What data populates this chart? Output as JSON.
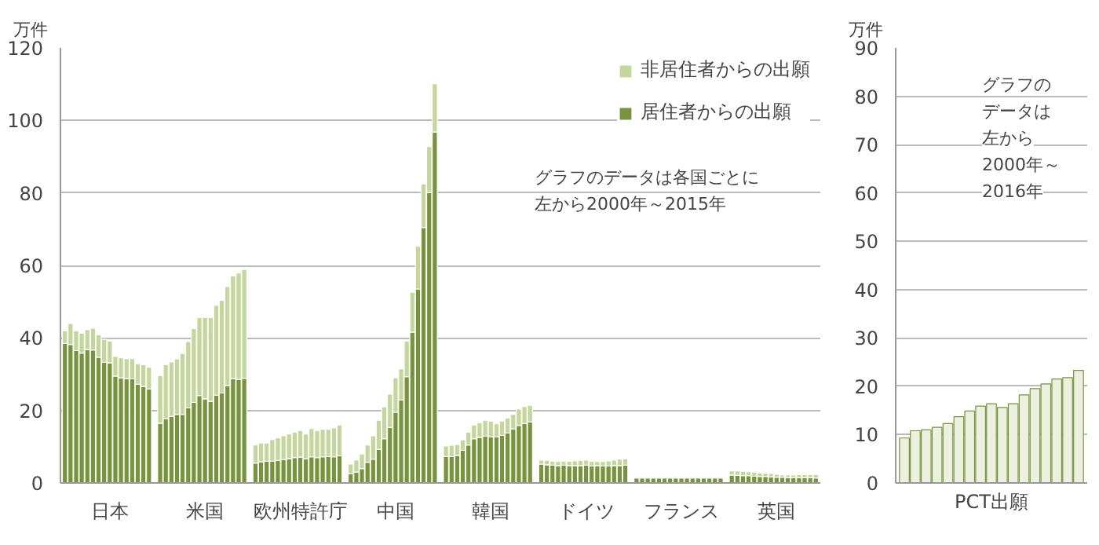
{
  "chart_data": [
    {
      "type": "bar",
      "title": "万件",
      "stacked": true,
      "legend": "top right",
      "grid": "y",
      "ylim": [
        0,
        120
      ],
      "yticks": [
        0,
        20,
        40,
        60,
        80,
        100,
        120
      ],
      "annotations": [
        "グラフのデータは各国ごとに",
        "左から2000年～2015年"
      ],
      "categories": [
        null,
        null,
        null,
        null,
        null,
        null,
        null,
        null,
        "日本",
        null,
        null,
        null,
        null,
        null,
        null,
        null,
        null,
        null,
        null,
        null,
        null,
        null,
        null,
        null,
        null,
        "米国",
        null,
        null,
        null,
        null,
        null,
        null,
        null,
        null,
        null,
        null,
        null,
        null,
        null,
        null,
        null,
        null,
        "欧州特許庁",
        null,
        null,
        null,
        null,
        null,
        null,
        null,
        null,
        null,
        null,
        null,
        null,
        null,
        null,
        null,
        null,
        "中国",
        null,
        null,
        null,
        null,
        null,
        null,
        null,
        null,
        null,
        null,
        null,
        null,
        null,
        null,
        null,
        null,
        "韓国",
        null,
        null,
        null,
        null,
        null,
        null,
        null,
        null,
        null,
        null,
        null,
        null,
        null,
        null,
        null,
        null,
        "ドイツ",
        null,
        null,
        null,
        null,
        null,
        null,
        null,
        null,
        null,
        null,
        null,
        null,
        null,
        null,
        null,
        null,
        "フランス",
        null,
        null,
        null,
        null,
        null,
        null,
        null,
        null,
        null,
        null,
        null,
        null,
        null,
        null,
        null,
        null,
        "英国",
        null,
        null,
        null,
        null,
        null,
        null,
        null
      ],
      "series": [
        {
          "name": "居住者からの出願",
          "color": "#77933c",
          "values": [
            38.5,
            38.2,
            36.5,
            35.8,
            36.8,
            36.7,
            34.7,
            33.3,
            33.1,
            29.5,
            29.0,
            28.8,
            28.7,
            27.2,
            26.6,
            25.9,
            null,
            16.5,
            17.7,
            18.4,
            18.9,
            18.9,
            20.7,
            22.2,
            24.1,
            23.2,
            22.5,
            24.2,
            24.8,
            26.9,
            28.8,
            28.5,
            28.9,
            null,
            5.5,
            5.8,
            6.0,
            6.0,
            6.2,
            6.4,
            6.7,
            7.0,
            7.1,
            6.7,
            7.2,
            7.0,
            7.2,
            7.3,
            7.2,
            7.5,
            null,
            2.5,
            3.0,
            4.0,
            5.7,
            6.6,
            9.3,
            12.2,
            15.3,
            19.5,
            22.9,
            29.3,
            41.6,
            53.5,
            70.5,
            80.1,
            96.8,
            null,
            7.3,
            7.3,
            7.6,
            9.0,
            10.5,
            12.2,
            12.6,
            12.9,
            12.7,
            12.7,
            13.1,
            13.8,
            14.9,
            15.9,
            16.4,
            16.8,
            null,
            5.2,
            5.0,
            4.9,
            4.8,
            4.9,
            4.8,
            4.8,
            4.8,
            4.9,
            4.7,
            4.8,
            4.7,
            4.7,
            4.8,
            4.8,
            4.9,
            null,
            1.4,
            1.4,
            1.4,
            1.4,
            1.4,
            1.4,
            1.4,
            1.4,
            1.4,
            1.4,
            1.4,
            1.4,
            1.4,
            1.4,
            1.4,
            1.4,
            null,
            2.2,
            2.1,
            2.0,
            2.0,
            1.9,
            1.8,
            1.8,
            1.7,
            1.6,
            1.6,
            1.5,
            1.5,
            1.5,
            1.5,
            1.5,
            1.4
          ]
        },
        {
          "name": "非居住者からの出願",
          "color": "#c3d69b",
          "values": [
            3.5,
            5.8,
            5.5,
            5.5,
            5.5,
            6.0,
            6.2,
            6.3,
            6.0,
            5.4,
            5.5,
            5.5,
            5.6,
            5.7,
            6.0,
            6.0,
            null,
            13.1,
            14.9,
            15.0,
            15.3,
            16.8,
            18.3,
            20.4,
            21.5,
            22.4,
            23.1,
            24.8,
            25.6,
            27.3,
            28.3,
            29.4,
            30.0,
            null,
            5.0,
            5.2,
            5.0,
            6.0,
            6.3,
            6.6,
            6.8,
            7.0,
            7.4,
            6.8,
            7.8,
            7.5,
            7.6,
            7.5,
            8.0,
            8.5,
            null,
            2.7,
            3.3,
            4.0,
            4.8,
            6.4,
            8.0,
            8.8,
            9.2,
            9.5,
            8.6,
            9.8,
            11.0,
            11.8,
            12.0,
            12.7,
            13.3,
            null,
            2.9,
            3.1,
            3.0,
            2.9,
            3.5,
            3.8,
            4.0,
            4.4,
            4.3,
            3.6,
            4.0,
            4.1,
            4.0,
            4.5,
            4.7,
            4.6,
            null,
            1.1,
            1.2,
            1.1,
            1.1,
            1.1,
            1.2,
            1.3,
            1.4,
            1.4,
            1.3,
            1.1,
            1.2,
            1.4,
            1.5,
            1.8,
            1.8,
            null,
            0.3,
            0.3,
            0.3,
            0.3,
            0.3,
            0.3,
            0.3,
            0.3,
            0.3,
            0.3,
            0.3,
            0.3,
            0.3,
            0.3,
            0.3,
            0.3,
            null,
            1.1,
            1.2,
            1.2,
            1.1,
            1.1,
            1.0,
            0.9,
            0.9,
            0.8,
            0.6,
            0.7,
            0.7,
            0.8,
            0.8,
            0.8,
            0.9
          ]
        }
      ]
    },
    {
      "type": "bar",
      "title": "万件",
      "xlabel": "PCT出願",
      "grid": "y",
      "ylim": [
        0,
        90
      ],
      "yticks": [
        0,
        10,
        20,
        30,
        40,
        50,
        60,
        70,
        80,
        90
      ],
      "annotations": [
        "グラフの",
        "データは",
        "左から",
        "2000年～",
        "2016年"
      ],
      "categories": [
        null,
        null,
        null,
        null,
        null,
        null,
        null,
        null,
        null,
        null,
        null,
        null,
        null,
        null,
        null,
        null,
        null
      ],
      "series": [
        {
          "color": "#ebf1de",
          "values": [
            9.3,
            10.8,
            11.0,
            11.5,
            12.3,
            13.7,
            14.9,
            15.9,
            16.4,
            15.6,
            16.4,
            18.2,
            19.5,
            20.5,
            21.5,
            21.8,
            23.3
          ]
        }
      ]
    }
  ]
}
